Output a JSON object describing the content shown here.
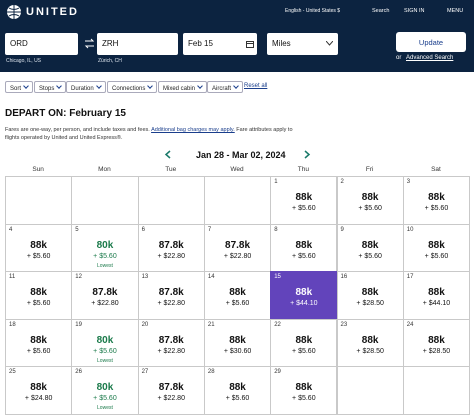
{
  "header": {
    "logo": "UNITED",
    "language": "English - United States $",
    "search": "Search",
    "sign_in": "SIGN IN",
    "menu": "MENU"
  },
  "search_form": {
    "origin": "ORD",
    "origin_city": "Chicago, IL, US",
    "destination": "ZRH",
    "destination_city": "Zürich, CH",
    "date": "Feb 15",
    "fare_type": "Miles",
    "update": "Update",
    "or": "or",
    "advanced": "Advanced Search"
  },
  "filters": [
    "Sort",
    "Stops",
    "Duration",
    "Connections",
    "Mixed cabin",
    "Aircraft"
  ],
  "reset": "Reset all",
  "depart_title": "DEPART ON: February 15",
  "note": {
    "before": "Fares are one-way, per person, and include taxes and fees.",
    "link": "Additional bag charges may apply.",
    "after": "Fare attributes apply to flights operated by United and United Express®."
  },
  "calendar": {
    "range": "Jan 28 - Mar 02, 2024",
    "weekdays": [
      "Sun",
      "Mon",
      "Tue",
      "Wed",
      "Thu",
      "Fri",
      "Sat"
    ],
    "weeks": [
      [
        null,
        null,
        null,
        null,
        {
          "day": "1",
          "miles": "88k",
          "taxes": "+ $5.60"
        },
        {
          "day": "2",
          "miles": "88k",
          "taxes": "+ $5.60"
        },
        {
          "day": "3",
          "miles": "88k",
          "taxes": "+ $5.60"
        }
      ],
      [
        {
          "day": "4",
          "miles": "88k",
          "taxes": "+ $5.60"
        },
        {
          "day": "5",
          "miles": "80k",
          "taxes": "+ $5.60",
          "tag": "Lowest"
        },
        {
          "day": "6",
          "miles": "87.8k",
          "taxes": "+ $22.80"
        },
        {
          "day": "7",
          "miles": "87.8k",
          "taxes": "+ $22.80"
        },
        {
          "day": "8",
          "miles": "88k",
          "taxes": "+ $5.60"
        },
        {
          "day": "9",
          "miles": "88k",
          "taxes": "+ $5.60"
        },
        {
          "day": "10",
          "miles": "88k",
          "taxes": "+ $5.60"
        }
      ],
      [
        {
          "day": "11",
          "miles": "88k",
          "taxes": "+ $5.60"
        },
        {
          "day": "12",
          "miles": "87.8k",
          "taxes": "+ $22.80"
        },
        {
          "day": "13",
          "miles": "87.8k",
          "taxes": "+ $22.80"
        },
        {
          "day": "14",
          "miles": "88k",
          "taxes": "+ $5.60"
        },
        {
          "day": "15",
          "miles": "88k",
          "taxes": "+ $44.10",
          "selected": true
        },
        {
          "day": "16",
          "miles": "88k",
          "taxes": "+ $28.50"
        },
        {
          "day": "17",
          "miles": "88k",
          "taxes": "+ $44.10"
        }
      ],
      [
        {
          "day": "18",
          "miles": "88k",
          "taxes": "+ $5.60"
        },
        {
          "day": "19",
          "miles": "80k",
          "taxes": "+ $5.60",
          "tag": "Lowest"
        },
        {
          "day": "20",
          "miles": "87.8k",
          "taxes": "+ $22.80"
        },
        {
          "day": "21",
          "miles": "88k",
          "taxes": "+ $30.60"
        },
        {
          "day": "22",
          "miles": "88k",
          "taxes": "+ $5.60"
        },
        {
          "day": "23",
          "miles": "88k",
          "taxes": "+ $28.50"
        },
        {
          "day": "24",
          "miles": "88k",
          "taxes": "+ $28.50"
        }
      ],
      [
        {
          "day": "25",
          "miles": "88k",
          "taxes": "+ $24.80"
        },
        {
          "day": "26",
          "miles": "80k",
          "taxes": "+ $5.60",
          "tag": "Lowest"
        },
        {
          "day": "27",
          "miles": "87.8k",
          "taxes": "+ $22.80"
        },
        {
          "day": "28",
          "miles": "88k",
          "taxes": "+ $5.60"
        },
        {
          "day": "29",
          "miles": "88k",
          "taxes": "+ $5.60"
        },
        null,
        null
      ]
    ]
  }
}
